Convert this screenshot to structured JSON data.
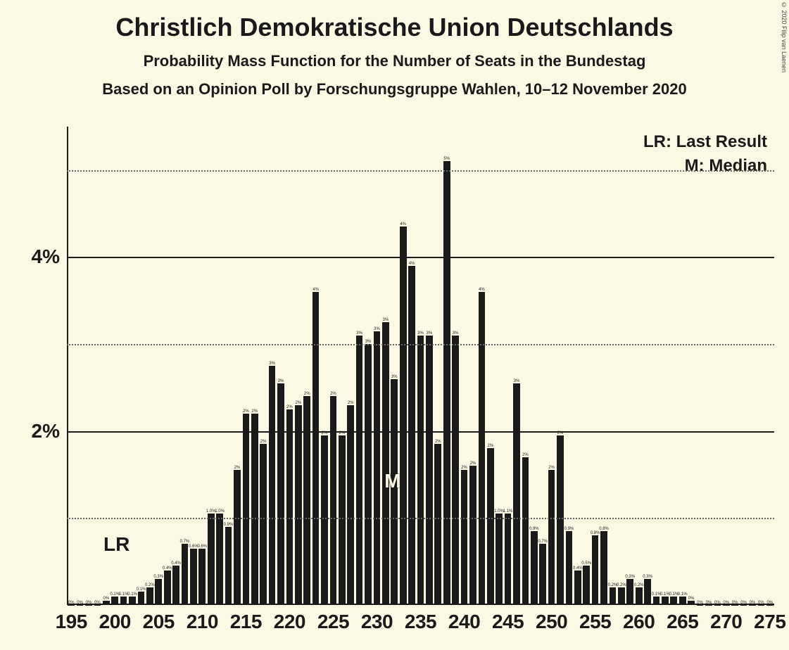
{
  "title": "Christlich Demokratische Union Deutschlands",
  "subtitle1": "Probability Mass Function for the Number of Seats in the Bundestag",
  "subtitle2": "Based on an Opinion Poll by Forschungsgruppe Wahlen, 10–12 November 2020",
  "copyright": "© 2020 Filip van Laenen",
  "legend": {
    "lr": "LR: Last Result",
    "m": "M: Median"
  },
  "markers": {
    "lr_label": "LR",
    "lr_x": 200,
    "m_label": "M",
    "m_x": 232
  },
  "chart": {
    "type": "bar",
    "x_start": 195,
    "x_end": 275,
    "x_tick_step": 5,
    "x_ticks": [
      195,
      200,
      205,
      210,
      215,
      220,
      225,
      230,
      235,
      240,
      245,
      250,
      255,
      260,
      265,
      270,
      275
    ],
    "ylim": [
      0,
      5.5
    ],
    "y_ticks_solid": [
      2,
      4
    ],
    "y_ticks_dotted": [
      1,
      3,
      5
    ],
    "y_tick_labels": {
      "2": "2%",
      "4": "4%"
    },
    "bar_color": "#1a1a1a",
    "background_color": "#fbf9e4",
    "grid_solid_color": "#1a1a1a",
    "grid_dotted_color": "#666666",
    "bar_width_ratio": 0.78,
    "title_fontsize": 36,
    "subtitle_fontsize": 22,
    "axis_label_fontsize": 28,
    "legend_fontsize": 24,
    "values": [
      {
        "x": 195,
        "y": 0.0,
        "lbl": "0%"
      },
      {
        "x": 196,
        "y": 0.0,
        "lbl": "0%"
      },
      {
        "x": 197,
        "y": 0.0,
        "lbl": "0%"
      },
      {
        "x": 198,
        "y": 0.0,
        "lbl": "0%"
      },
      {
        "x": 199,
        "y": 0.05,
        "lbl": "0%"
      },
      {
        "x": 200,
        "y": 0.1,
        "lbl": "0.1%"
      },
      {
        "x": 201,
        "y": 0.1,
        "lbl": "0.1%"
      },
      {
        "x": 202,
        "y": 0.1,
        "lbl": "0.1%"
      },
      {
        "x": 203,
        "y": 0.15,
        "lbl": "0.1%"
      },
      {
        "x": 204,
        "y": 0.2,
        "lbl": "0.2%"
      },
      {
        "x": 205,
        "y": 0.3,
        "lbl": "0.3%"
      },
      {
        "x": 206,
        "y": 0.4,
        "lbl": "0.4%"
      },
      {
        "x": 207,
        "y": 0.45,
        "lbl": "0.4%"
      },
      {
        "x": 208,
        "y": 0.7,
        "lbl": "0.7%"
      },
      {
        "x": 209,
        "y": 0.65,
        "lbl": "0.6%"
      },
      {
        "x": 210,
        "y": 0.65,
        "lbl": "0.6%"
      },
      {
        "x": 211,
        "y": 1.05,
        "lbl": "1.0%"
      },
      {
        "x": 212,
        "y": 1.05,
        "lbl": "1.0%"
      },
      {
        "x": 213,
        "y": 0.9,
        "lbl": "0.9%"
      },
      {
        "x": 214,
        "y": 1.55,
        "lbl": "2%"
      },
      {
        "x": 215,
        "y": 2.2,
        "lbl": "2%"
      },
      {
        "x": 216,
        "y": 2.2,
        "lbl": "2%"
      },
      {
        "x": 217,
        "y": 1.85,
        "lbl": "2%"
      },
      {
        "x": 218,
        "y": 2.75,
        "lbl": "3%"
      },
      {
        "x": 219,
        "y": 2.55,
        "lbl": "3%"
      },
      {
        "x": 220,
        "y": 2.25,
        "lbl": "2%"
      },
      {
        "x": 221,
        "y": 2.3,
        "lbl": "2%"
      },
      {
        "x": 222,
        "y": 2.4,
        "lbl": "2%"
      },
      {
        "x": 223,
        "y": 3.6,
        "lbl": "4%"
      },
      {
        "x": 224,
        "y": 1.95,
        "lbl": "2%"
      },
      {
        "x": 225,
        "y": 2.4,
        "lbl": "2%"
      },
      {
        "x": 226,
        "y": 1.95,
        "lbl": "2%"
      },
      {
        "x": 227,
        "y": 2.3,
        "lbl": "2%"
      },
      {
        "x": 228,
        "y": 3.1,
        "lbl": "3%"
      },
      {
        "x": 229,
        "y": 3.0,
        "lbl": "3%"
      },
      {
        "x": 230,
        "y": 3.15,
        "lbl": "3%"
      },
      {
        "x": 231,
        "y": 3.25,
        "lbl": "3%"
      },
      {
        "x": 232,
        "y": 2.6,
        "lbl": "3%"
      },
      {
        "x": 233,
        "y": 4.35,
        "lbl": "4%"
      },
      {
        "x": 234,
        "y": 3.9,
        "lbl": "4%"
      },
      {
        "x": 235,
        "y": 3.1,
        "lbl": "3%"
      },
      {
        "x": 236,
        "y": 3.1,
        "lbl": "3%"
      },
      {
        "x": 237,
        "y": 1.85,
        "lbl": "2%"
      },
      {
        "x": 238,
        "y": 5.1,
        "lbl": "5%"
      },
      {
        "x": 239,
        "y": 3.1,
        "lbl": "3%"
      },
      {
        "x": 240,
        "y": 1.55,
        "lbl": "2%"
      },
      {
        "x": 241,
        "y": 1.6,
        "lbl": "2%"
      },
      {
        "x": 242,
        "y": 3.6,
        "lbl": "4%"
      },
      {
        "x": 243,
        "y": 1.8,
        "lbl": "2%"
      },
      {
        "x": 244,
        "y": 1.05,
        "lbl": "1.0%"
      },
      {
        "x": 245,
        "y": 1.05,
        "lbl": "1.1%"
      },
      {
        "x": 246,
        "y": 2.55,
        "lbl": "3%"
      },
      {
        "x": 247,
        "y": 1.7,
        "lbl": "2%"
      },
      {
        "x": 248,
        "y": 0.85,
        "lbl": "0.9%"
      },
      {
        "x": 249,
        "y": 0.7,
        "lbl": "0.7%"
      },
      {
        "x": 250,
        "y": 1.55,
        "lbl": "2%"
      },
      {
        "x": 251,
        "y": 1.95,
        "lbl": "2%"
      },
      {
        "x": 252,
        "y": 0.85,
        "lbl": "0.9%"
      },
      {
        "x": 253,
        "y": 0.4,
        "lbl": "0.4%"
      },
      {
        "x": 254,
        "y": 0.45,
        "lbl": "0.5%"
      },
      {
        "x": 255,
        "y": 0.8,
        "lbl": "0.8%"
      },
      {
        "x": 256,
        "y": 0.85,
        "lbl": "0.8%"
      },
      {
        "x": 257,
        "y": 0.2,
        "lbl": "0.2%"
      },
      {
        "x": 258,
        "y": 0.2,
        "lbl": "0.2%"
      },
      {
        "x": 259,
        "y": 0.3,
        "lbl": "0.3%"
      },
      {
        "x": 260,
        "y": 0.2,
        "lbl": "0.2%"
      },
      {
        "x": 261,
        "y": 0.3,
        "lbl": "0.3%"
      },
      {
        "x": 262,
        "y": 0.1,
        "lbl": "0.1%"
      },
      {
        "x": 263,
        "y": 0.1,
        "lbl": "0.1%"
      },
      {
        "x": 264,
        "y": 0.1,
        "lbl": "0.1%"
      },
      {
        "x": 265,
        "y": 0.1,
        "lbl": "0.1%"
      },
      {
        "x": 266,
        "y": 0.05,
        "lbl": "0%"
      },
      {
        "x": 267,
        "y": 0.0,
        "lbl": "0%"
      },
      {
        "x": 268,
        "y": 0.0,
        "lbl": "0%"
      },
      {
        "x": 269,
        "y": 0.0,
        "lbl": "0%"
      },
      {
        "x": 270,
        "y": 0.0,
        "lbl": "0%"
      },
      {
        "x": 271,
        "y": 0.0,
        "lbl": "0%"
      },
      {
        "x": 272,
        "y": 0.0,
        "lbl": "0%"
      },
      {
        "x": 273,
        "y": 0.0,
        "lbl": "0%"
      },
      {
        "x": 274,
        "y": 0.0,
        "lbl": "0%"
      },
      {
        "x": 275,
        "y": 0.0,
        "lbl": "0%"
      }
    ]
  }
}
